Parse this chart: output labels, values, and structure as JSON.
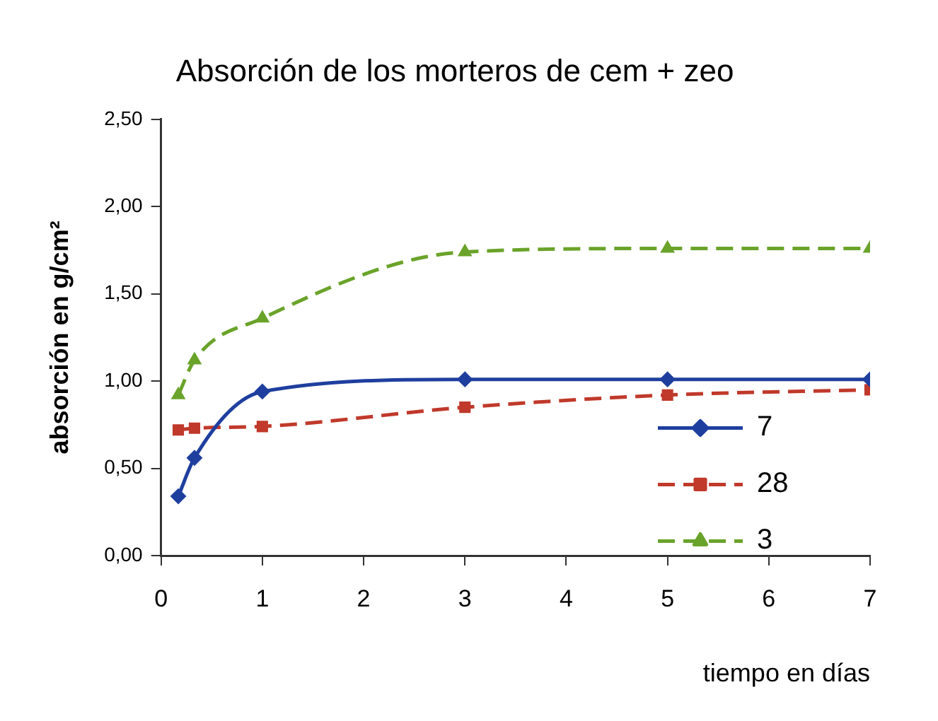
{
  "chart_data": {
    "type": "line",
    "title": "Absorción de los morteros de cem + zeo",
    "xlabel": "tiempo en días",
    "ylabel": "absorción en g/cm²",
    "x": [
      0.17,
      0.33,
      1,
      3,
      5,
      7
    ],
    "series": [
      {
        "name": "7",
        "color": "#1f3f9f",
        "values": [
          0.34,
          0.56,
          0.94,
          1.01,
          1.01,
          1.01
        ],
        "marker": "diamond",
        "line_style": "solid"
      },
      {
        "name": "28",
        "color": "#c0392b",
        "values": [
          0.72,
          0.73,
          0.74,
          0.85,
          0.92,
          0.95
        ],
        "marker": "square",
        "line_style": "dashed"
      },
      {
        "name": "3",
        "color": "#6aa32a",
        "values": [
          0.92,
          1.12,
          1.36,
          1.74,
          1.76,
          1.76
        ],
        "marker": "triangle",
        "line_style": "dashed"
      }
    ],
    "xlim": [
      0,
      7
    ],
    "xticks": [
      0,
      1,
      2,
      3,
      4,
      5,
      6,
      7
    ],
    "ylim": [
      0,
      2.5
    ],
    "yticks": [
      {
        "value": 0,
        "label": "0,00"
      },
      {
        "value": 0.5,
        "label": "0,50"
      },
      {
        "value": 1,
        "label": "1,00"
      },
      {
        "value": 1.5,
        "label": "1,50"
      },
      {
        "value": 2,
        "label": "2,00"
      },
      {
        "value": 2.5,
        "label": "2,50"
      }
    ],
    "grid": false,
    "legend": "right"
  }
}
